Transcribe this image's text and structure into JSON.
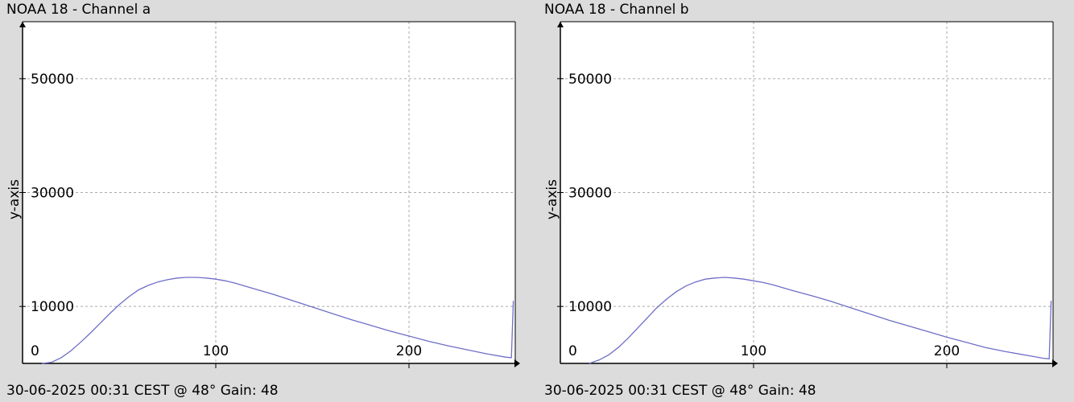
{
  "chart_data": [
    {
      "type": "line",
      "title": "NOAA 18 - Channel a",
      "ylabel": "y-axis",
      "xlabel": "",
      "footer": "30-06-2025 00:31 CEST @ 48° Gain: 48",
      "xlim": [
        0,
        255
      ],
      "ylim": [
        0,
        60000
      ],
      "x_ticks": [
        0,
        100,
        200
      ],
      "y_ticks": [
        0,
        10000,
        30000,
        50000
      ],
      "grid": true,
      "line_color": "#6e6ec8",
      "series": [
        {
          "x": [
            10,
            15,
            20,
            25,
            30,
            35,
            40,
            45,
            50,
            55,
            60,
            65,
            70,
            75,
            80,
            85,
            90,
            95,
            100,
            105,
            110,
            115,
            120,
            130,
            140,
            150,
            160,
            170,
            180,
            190,
            200,
            210,
            220,
            230,
            240,
            250,
            253,
            254
          ],
          "y": [
            0,
            200,
            1000,
            2200,
            3700,
            5300,
            7000,
            8700,
            10300,
            11700,
            12900,
            13700,
            14300,
            14700,
            15000,
            15100,
            15100,
            15000,
            14800,
            14500,
            14100,
            13600,
            13100,
            12100,
            11000,
            9900,
            8800,
            7700,
            6700,
            5700,
            4800,
            3900,
            3100,
            2400,
            1700,
            1100,
            1000,
            11000
          ]
        }
      ]
    },
    {
      "type": "line",
      "title": "NOAA 18 - Channel b",
      "ylabel": "y-axis",
      "xlabel": "",
      "footer": "30-06-2025 00:31 CEST @ 48° Gain: 48",
      "xlim": [
        0,
        255
      ],
      "ylim": [
        0,
        60000
      ],
      "x_ticks": [
        0,
        100,
        200
      ],
      "y_ticks": [
        0,
        10000,
        30000,
        50000
      ],
      "grid": true,
      "line_color": "#6e6ec8",
      "series": [
        {
          "x": [
            15,
            20,
            25,
            30,
            35,
            40,
            45,
            50,
            55,
            60,
            65,
            70,
            75,
            80,
            85,
            90,
            95,
            100,
            105,
            110,
            115,
            120,
            130,
            140,
            150,
            160,
            170,
            180,
            190,
            200,
            210,
            220,
            230,
            240,
            250,
            253,
            254
          ],
          "y": [
            0,
            600,
            1500,
            2800,
            4400,
            6200,
            8000,
            9800,
            11300,
            12600,
            13600,
            14300,
            14800,
            15000,
            15100,
            15000,
            14800,
            14500,
            14200,
            13800,
            13300,
            12800,
            11900,
            10900,
            9800,
            8700,
            7600,
            6600,
            5600,
            4600,
            3700,
            2800,
            2100,
            1500,
            900,
            800,
            11000
          ]
        }
      ]
    }
  ]
}
